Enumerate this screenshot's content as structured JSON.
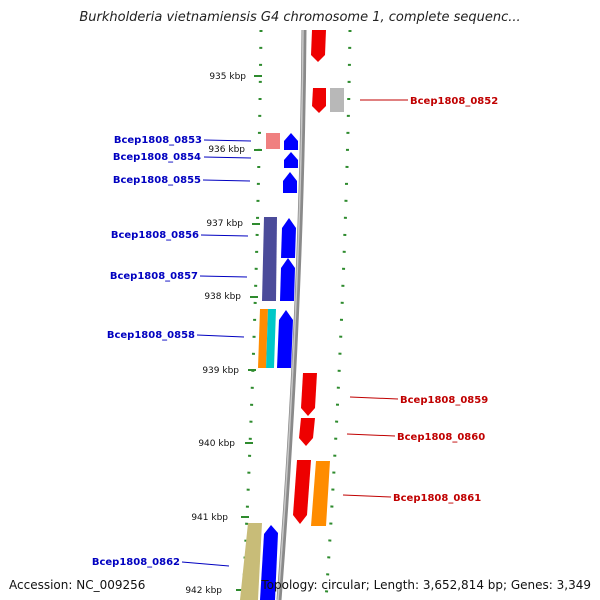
{
  "title": "Burkholderia vietnamiensis G4 chromosome 1, complete sequenc...",
  "footer": {
    "accession": "Accession: NC_009256",
    "summary": "Topology: circular; Length: 3,652,814 bp; Genes: 3,349"
  },
  "ticks": [
    "935 kbp",
    "936 kbp",
    "937 kbp",
    "938 kbp",
    "939 kbp",
    "940 kbp",
    "941 kbp",
    "942 kbp"
  ],
  "gene_labels_left": [
    "Bcep1808_0853",
    "Bcep1808_0854",
    "Bcep1808_0855",
    "Bcep1808_0856",
    "Bcep1808_0857",
    "Bcep1808_0858",
    "Bcep1808_0862"
  ],
  "gene_labels_right": [
    "Bcep1808_0852",
    "Bcep1808_0859",
    "Bcep1808_0860",
    "Bcep1808_0861"
  ],
  "colors": {
    "backbone": "#8a8a8a",
    "dotted_guide": "#2e8b2e",
    "forward_gene": "#0000ff",
    "reverse_gene": "#ee0000",
    "light_red": "#f08080",
    "grey": "#b8b8b8",
    "indigo": "#4b4b9a",
    "orange": "#ff8c00",
    "cyan": "#00c8c8",
    "khaki": "#c8bc78"
  }
}
